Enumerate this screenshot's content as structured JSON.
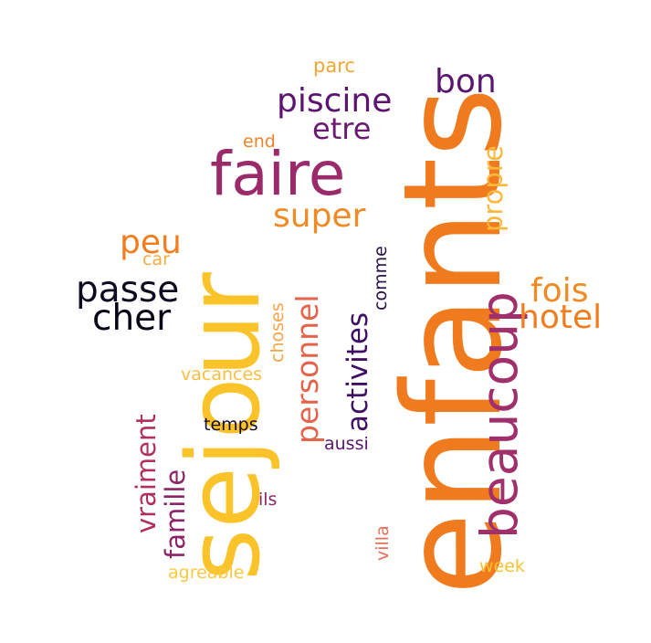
{
  "word_cloud": {
    "words": [
      {
        "text": "enfants",
        "color": "#f07a1e"
      },
      {
        "text": "sejour",
        "color": "#fbc32a"
      },
      {
        "text": "faire",
        "color": "#9b2a6a"
      },
      {
        "text": "beaucoup",
        "color": "#a0306b"
      },
      {
        "text": "piscine",
        "color": "#5c1470"
      },
      {
        "text": "bon",
        "color": "#5a166f"
      },
      {
        "text": "etre",
        "color": "#6a1a6f"
      },
      {
        "text": "super",
        "color": "#f08a24"
      },
      {
        "text": "propre",
        "color": "#fbb83a"
      },
      {
        "text": "parc",
        "color": "#f5a52f"
      },
      {
        "text": "end",
        "color": "#f08326"
      },
      {
        "text": "peu",
        "color": "#f07d1e"
      },
      {
        "text": "car",
        "color": "#f5ad3f"
      },
      {
        "text": "passe",
        "color": "#0e0a20"
      },
      {
        "text": "cher",
        "color": "#080616"
      },
      {
        "text": "fois",
        "color": "#f28a22"
      },
      {
        "text": "hotel",
        "color": "#f07d1e"
      },
      {
        "text": "personnel",
        "color": "#e3644a"
      },
      {
        "text": "activites",
        "color": "#3e0f63"
      },
      {
        "text": "comme",
        "color": "#261048"
      },
      {
        "text": "choses",
        "color": "#f5a448"
      },
      {
        "text": "vraiment",
        "color": "#b1305e"
      },
      {
        "text": "famille",
        "color": "#8c2568"
      },
      {
        "text": "vacances",
        "color": "#fbbe3d"
      },
      {
        "text": "temps",
        "color": "#150c26"
      },
      {
        "text": "aussi",
        "color": "#5c1670"
      },
      {
        "text": "ils",
        "color": "#8c2569"
      },
      {
        "text": "villa",
        "color": "#e66e58"
      },
      {
        "text": "agreable",
        "color": "#fbc842"
      },
      {
        "text": "week",
        "color": "#fbc033"
      }
    ]
  }
}
